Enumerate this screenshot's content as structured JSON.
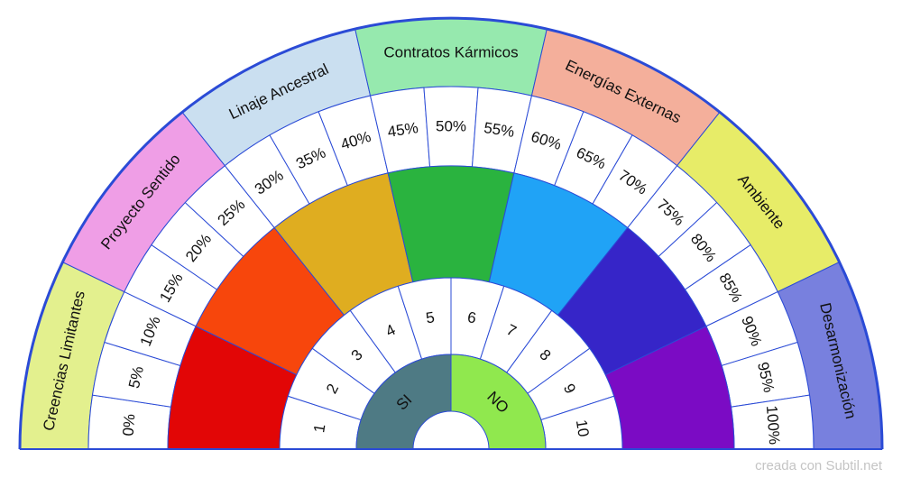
{
  "outer_ring": [
    {
      "label": "Creencias Limitantes",
      "color": "#e3f08e"
    },
    {
      "label": "Proyecto Sentido",
      "color": "#ef9ee6"
    },
    {
      "label": "Linaje Ancestral",
      "color": "#cadff0"
    },
    {
      "label": "Contratos Kármicos",
      "color": "#96e9ae"
    },
    {
      "label": "Energías Externas",
      "color": "#f4af9b"
    },
    {
      "label": "Ambiente",
      "color": "#e7ec68"
    },
    {
      "label": "Desarmonización",
      "color": "#7880de"
    }
  ],
  "percent_ring": [
    "0%",
    "5%",
    "10%",
    "15%",
    "20%",
    "25%",
    "30%",
    "35%",
    "40%",
    "45%",
    "50%",
    "55%",
    "60%",
    "65%",
    "70%",
    "75%",
    "80%",
    "85%",
    "90%",
    "95%",
    "100%"
  ],
  "color_ring": [
    "#e20606",
    "#f7460c",
    "#dfad20",
    "#2ab33f",
    "#20a3f6",
    "#3625c8",
    "#7b0bc4"
  ],
  "number_ring": [
    "1",
    "2",
    "3",
    "4",
    "5",
    "6",
    "7",
    "8",
    "9",
    "10"
  ],
  "center_ring": [
    {
      "label": "SI",
      "color": "#4e7a84"
    },
    {
      "label": "NO",
      "color": "#90e84e"
    }
  ],
  "line_color": "#2b4bd6",
  "footer": {
    "credit": "creada con Subtil.net"
  }
}
